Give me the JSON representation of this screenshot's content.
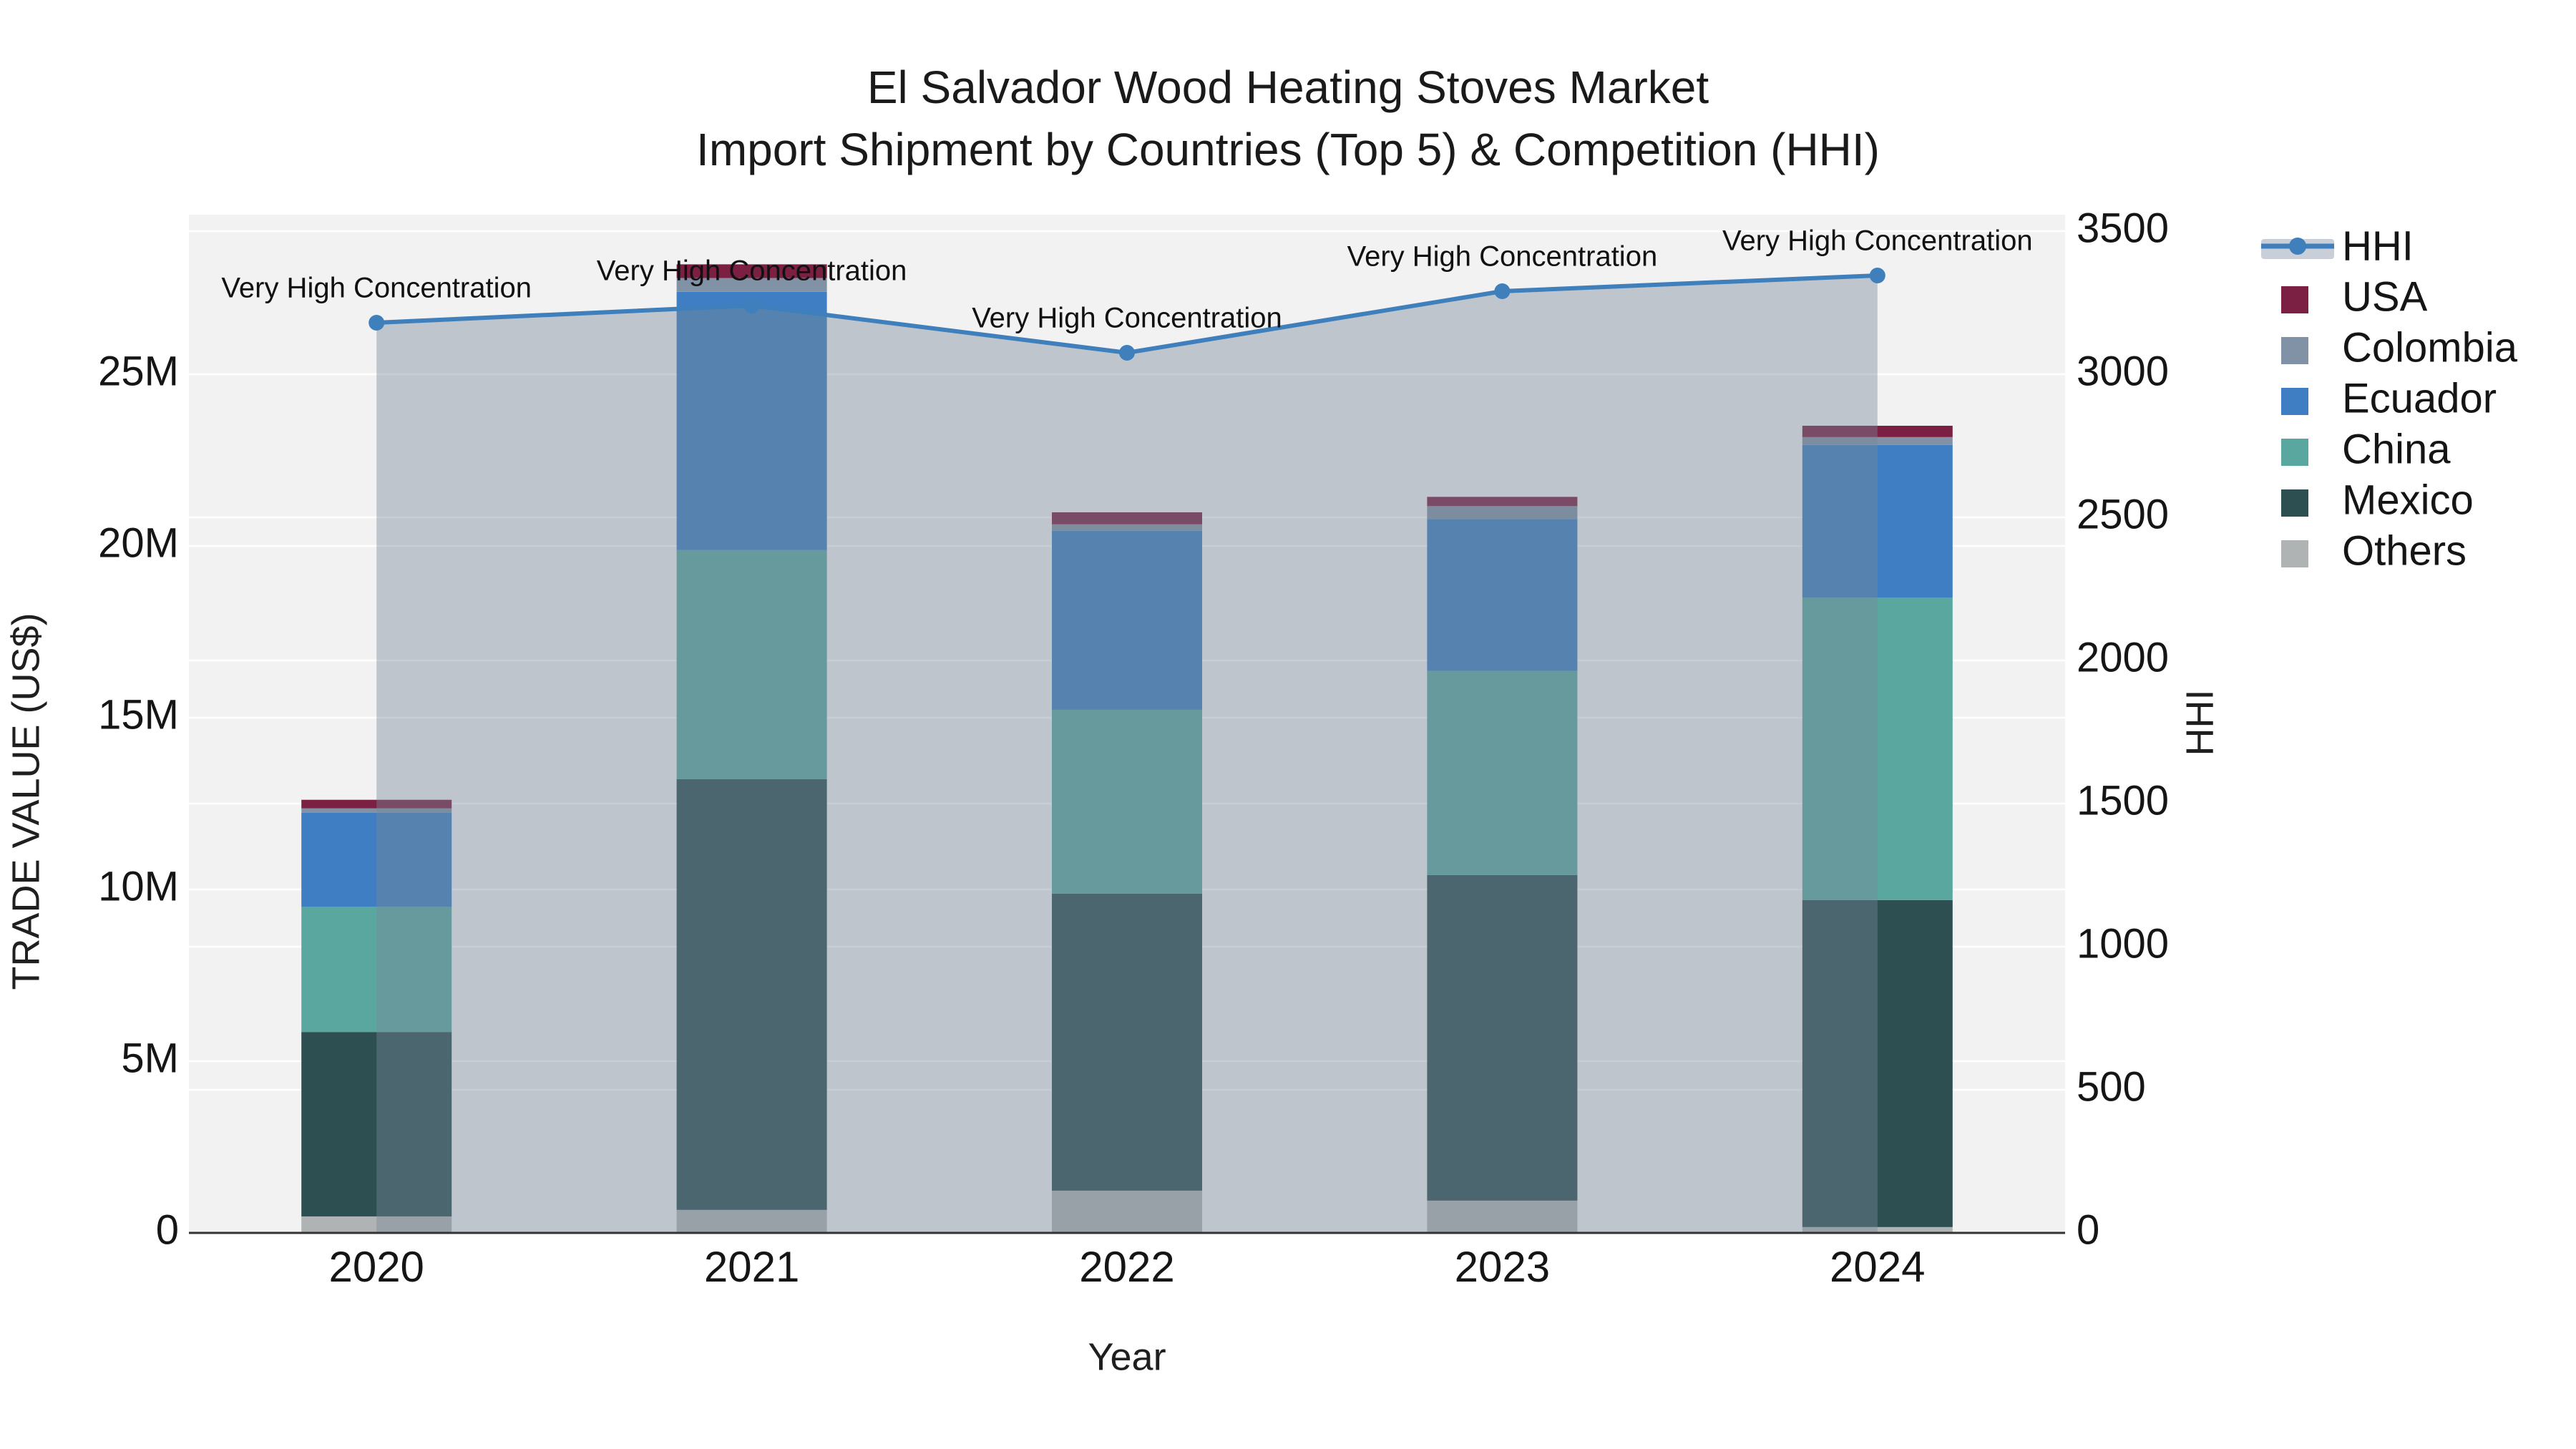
{
  "title": {
    "line1": "El Salvador Wood Heating Stoves Market",
    "line2": "Import Shipment by Countries (Top 5) & Competition (HHI)"
  },
  "axes": {
    "x": {
      "title": "Year",
      "categories": [
        "2020",
        "2021",
        "2022",
        "2023",
        "2024"
      ]
    },
    "y_left": {
      "title": "TRADE VALUE (US$)",
      "tick_labels": [
        "0",
        "5M",
        "10M",
        "15M",
        "20M",
        "25M"
      ],
      "tick_values_millions": [
        0,
        5,
        10,
        15,
        20,
        25
      ]
    },
    "y_right": {
      "title": "HHI",
      "tick_labels": [
        "0",
        "500",
        "1000",
        "1500",
        "2000",
        "2500",
        "3000",
        "3500"
      ],
      "tick_values": [
        0,
        500,
        1000,
        1500,
        2000,
        2500,
        3000,
        3500
      ]
    }
  },
  "legend": {
    "items": [
      {
        "label": "HHI",
        "kind": "line-fill",
        "color": "#3f7fbc",
        "fill_color": "#c9cfd8"
      },
      {
        "label": "USA",
        "kind": "square",
        "color": "#7b2043"
      },
      {
        "label": "Colombia",
        "kind": "square",
        "color": "#8192a6"
      },
      {
        "label": "Ecuador",
        "kind": "square",
        "color": "#3f7ec2"
      },
      {
        "label": "China",
        "kind": "square",
        "color": "#5aa7a0"
      },
      {
        "label": "Mexico",
        "kind": "square",
        "color": "#2d4f52"
      },
      {
        "label": "Others",
        "kind": "square",
        "color": "#b0b3b3"
      }
    ]
  },
  "annotation_text": "Very High Concentration",
  "colors": {
    "plot_background": "#f2f2f2",
    "gridline": "#ffffff",
    "axis_line": "#333333",
    "hhi_line": "#3f7fbc",
    "hhi_area_fill": "rgba(119,136,153,0.42)",
    "usa": "#7b2043",
    "colombia": "#8192a6",
    "ecuador": "#3f7ec2",
    "china": "#5aa7a0",
    "mexico": "#2d4f52",
    "others": "#b0b3b3"
  },
  "chart_data": {
    "type": "bar",
    "subtype": "stacked-bar-with-line",
    "title": "El Salvador Wood Heating Stoves Market — Import Shipment by Countries (Top 5) & Competition (HHI)",
    "xlabel": "Year",
    "ylabel_left": "TRADE VALUE (US$)",
    "ylabel_right": "HHI",
    "categories": [
      "2020",
      "2021",
      "2022",
      "2023",
      "2024"
    ],
    "bar_unit": "million US$",
    "series": [
      {
        "name": "Others",
        "axis": "left",
        "values_millions": [
          0.48,
          0.67,
          1.23,
          0.94,
          0.17
        ]
      },
      {
        "name": "Mexico",
        "axis": "left",
        "values_millions": [
          5.37,
          12.54,
          8.65,
          9.48,
          9.52
        ]
      },
      {
        "name": "China",
        "axis": "left",
        "values_millions": [
          3.65,
          6.67,
          5.35,
          5.94,
          8.81
        ]
      },
      {
        "name": "Ecuador",
        "axis": "left",
        "values_millions": [
          2.73,
          7.52,
          5.21,
          4.42,
          4.44
        ]
      },
      {
        "name": "Colombia",
        "axis": "left",
        "values_millions": [
          0.13,
          0.4,
          0.19,
          0.38,
          0.23
        ]
      },
      {
        "name": "USA",
        "axis": "left",
        "values_millions": [
          0.25,
          0.4,
          0.35,
          0.27,
          0.33
        ]
      }
    ],
    "totals_millions": [
      12.61,
      28.2,
      20.98,
      21.43,
      23.5
    ],
    "line_series": {
      "name": "HHI",
      "axis": "right",
      "values": [
        3180,
        3240,
        3075,
        3290,
        3345
      ]
    },
    "annotations": [
      "Very High Concentration",
      "Very High Concentration",
      "Very High Concentration",
      "Very High Concentration",
      "Very High Concentration"
    ],
    "ylim_left_millions": [
      0,
      29.6
    ],
    "ylim_right": [
      0,
      3557
    ],
    "grid": true,
    "legend_position": "right"
  }
}
